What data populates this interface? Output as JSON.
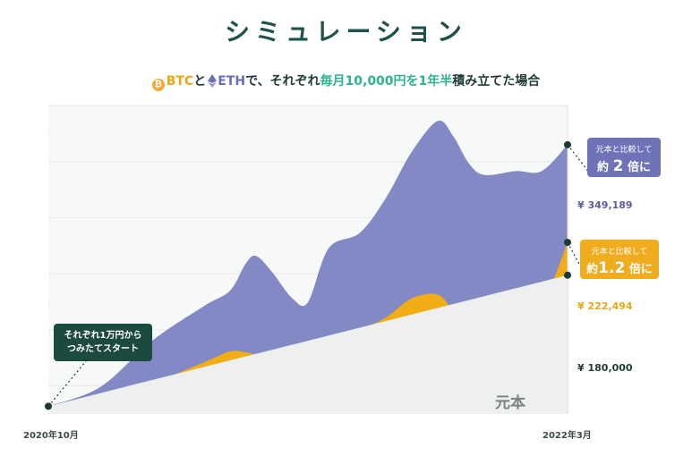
{
  "title": "シミュレーション",
  "subtitle": {
    "btc": "BTC",
    "to": "と",
    "eth": "ETH",
    "mid": "で、それぞれ",
    "highlight": "毎月10,000円を1年半",
    "end": "積み立てた場合",
    "btc_icon": "bitcoin-coin-icon",
    "eth_icon": "ethereum-diamond-icon"
  },
  "callouts": {
    "eth": {
      "small": "元本と比較して",
      "prefix": "約",
      "multiple": "2",
      "suffix": "倍に"
    },
    "btc": {
      "small": "元本と比較して",
      "prefix": "約",
      "multiple": "1.2",
      "suffix": "倍に"
    }
  },
  "start_note": "それぞれ1万円から\nつみたてスタート",
  "principal_label": "元本",
  "end_values": {
    "eth": "¥ 349,189",
    "btc": "¥ 222,494",
    "principal": "¥ 180,000"
  },
  "colors": {
    "eth": "#8389c5",
    "btc": "#f0ad16",
    "principal": "#edf0ee",
    "dot": "#1d3b30",
    "title": "#20524b",
    "highlight": "#2db38f"
  },
  "chart_data": {
    "type": "area",
    "x_start_label": "2020年10月",
    "x_end_label": "2022年3月",
    "x": [
      0,
      0.1,
      0.2,
      0.3,
      0.35,
      0.38,
      0.4,
      0.43,
      0.47,
      0.5,
      0.54,
      0.6,
      0.65,
      0.7,
      0.75,
      0.78,
      0.81,
      0.84,
      0.9,
      0.95,
      1.0
    ],
    "grid": true,
    "series": [
      {
        "key": "eth",
        "values": [
          10000,
          35000,
          95000,
          140000,
          160000,
          195000,
          205000,
          185000,
          150000,
          145000,
          215000,
          235000,
          280000,
          340000,
          380000,
          360000,
          325000,
          310000,
          315000,
          315000,
          349189
        ]
      },
      {
        "key": "btc",
        "values": [
          10000,
          18000,
          40000,
          67000,
          81000,
          80000,
          77000,
          75000,
          75000,
          72000,
          98000,
          110000,
          125000,
          150000,
          155000,
          135000,
          130000,
          130000,
          140000,
          142000,
          222494
        ]
      },
      {
        "key": "principal",
        "values": [
          10000,
          27000,
          44000,
          61000,
          69500,
          74600,
          78000,
          83100,
          89900,
          95000,
          101800,
          112000,
          120500,
          129000,
          137500,
          142600,
          147700,
          152800,
          163000,
          171500,
          180000
        ]
      }
    ]
  }
}
